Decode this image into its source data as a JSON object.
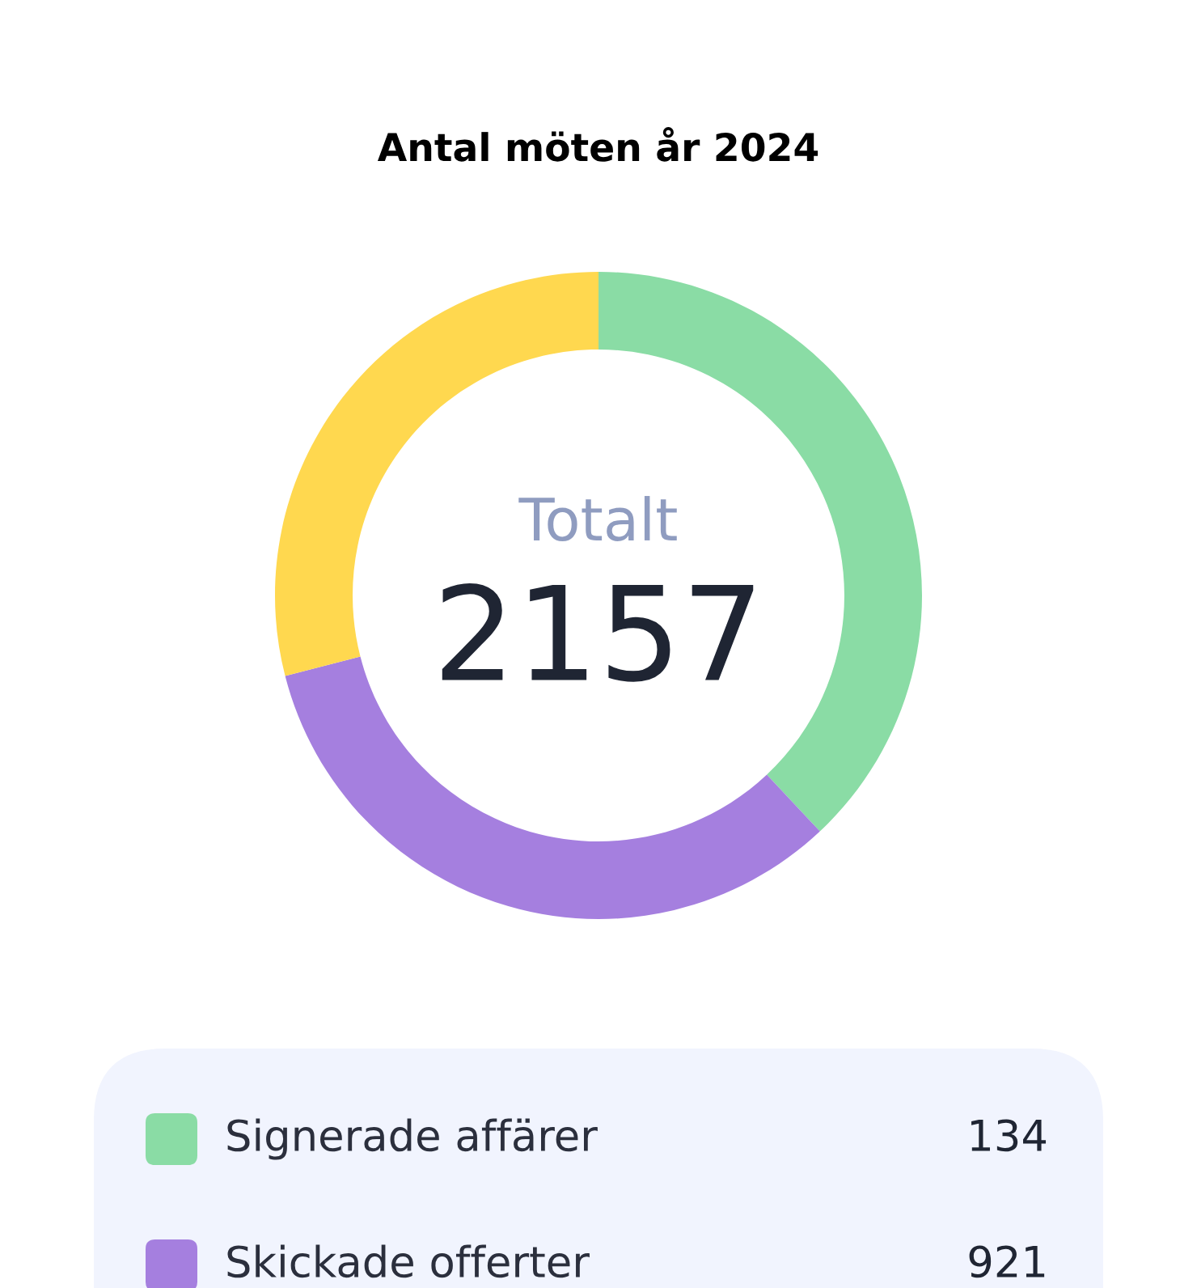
{
  "chart_data": {
    "type": "donut",
    "title": "Antal möten år 2024",
    "categories": [
      "Signerade affärer",
      "Skickade offerter",
      null
    ],
    "values": [
      38,
      33,
      29
    ],
    "colors": [
      "#8adca5",
      "#a57fdf",
      "#ffd84f"
    ],
    "annotations": [
      "Totalt",
      "2157",
      "134",
      "921"
    ],
    "legend": "bottom"
  }
}
